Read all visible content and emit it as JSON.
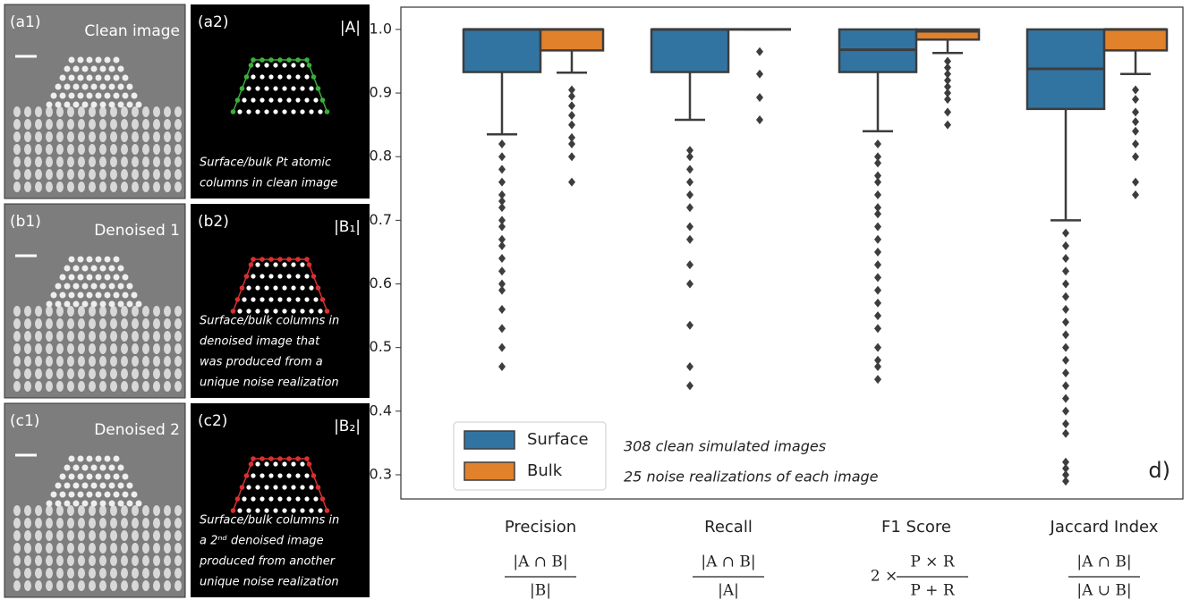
{
  "panels": [
    {
      "image_label": "(a1)",
      "image_title": "Clean image",
      "set_label": "(a2)",
      "set_name": "|A|",
      "outline_color": "#3cae3c",
      "caption": [
        "Surface/bulk Pt atomic",
        "columns in clean image"
      ]
    },
    {
      "image_label": "(b1)",
      "image_title": "Denoised 1",
      "set_label": "(b2)",
      "set_name": "|B₁|",
      "outline_color": "#d93030",
      "caption": [
        "Surface/bulk columns in",
        "denoised image that",
        "was produced from a",
        "unique noise realization"
      ]
    },
    {
      "image_label": "(c1)",
      "image_title": "Denoised 2",
      "set_label": "(c2)",
      "set_name": "|B₂|",
      "outline_color": "#d93030",
      "caption": [
        "Surface/bulk columns in",
        "a 2ⁿᵈ denoised image",
        "produced from another",
        "unique noise realization"
      ]
    }
  ],
  "chart_data": {
    "type": "box",
    "categories": [
      "Precision",
      "Recall",
      "F1 Score",
      "Jaccard Index"
    ],
    "formulas": [
      {
        "numerator": "|A ∩ B|",
        "denominator": "|B|"
      },
      {
        "numerator": "|A ∩ B|",
        "denominator": "|A|"
      },
      {
        "prefix": "2 ×",
        "numerator": "P × R",
        "denominator": "P + R"
      },
      {
        "numerator": "|A ∩ B|",
        "denominator": "|A ∪ B|"
      }
    ],
    "series": [
      {
        "name": "Surface",
        "color": "#3274a1",
        "boxes": [
          {
            "whislo": 0.835,
            "q1": 0.933,
            "med": 1.0,
            "q3": 1.0,
            "whishi": 1.0,
            "fliers": [
              0.82,
              0.8,
              0.78,
              0.76,
              0.74,
              0.73,
              0.72,
              0.7,
              0.69,
              0.67,
              0.66,
              0.64,
              0.62,
              0.6,
              0.59,
              0.56,
              0.53,
              0.5,
              0.47
            ]
          },
          {
            "whislo": 0.858,
            "q1": 0.933,
            "med": 1.0,
            "q3": 1.0,
            "whishi": 1.0,
            "fliers": [
              0.81,
              0.8,
              0.78,
              0.76,
              0.74,
              0.72,
              0.69,
              0.67,
              0.63,
              0.6,
              0.535,
              0.47,
              0.44
            ]
          },
          {
            "whislo": 0.84,
            "q1": 0.933,
            "med": 0.968,
            "q3": 1.0,
            "whishi": 1.0,
            "fliers": [
              0.82,
              0.8,
              0.79,
              0.77,
              0.76,
              0.74,
              0.72,
              0.71,
              0.69,
              0.67,
              0.65,
              0.63,
              0.61,
              0.59,
              0.57,
              0.55,
              0.53,
              0.5,
              0.48,
              0.47,
              0.45
            ]
          },
          {
            "whislo": 0.7,
            "q1": 0.875,
            "med": 0.938,
            "q3": 1.0,
            "whishi": 1.0,
            "fliers": [
              0.68,
              0.66,
              0.64,
              0.62,
              0.6,
              0.58,
              0.56,
              0.54,
              0.52,
              0.5,
              0.48,
              0.46,
              0.44,
              0.42,
              0.4,
              0.38,
              0.365,
              0.32,
              0.31,
              0.3,
              0.29
            ]
          }
        ]
      },
      {
        "name": "Bulk",
        "color": "#e1812c",
        "boxes": [
          {
            "whislo": 0.932,
            "q1": 0.967,
            "med": 1.0,
            "q3": 1.0,
            "whishi": 1.0,
            "fliers": [
              0.905,
              0.895,
              0.88,
              0.865,
              0.85,
              0.83,
              0.82,
              0.8,
              0.76
            ]
          },
          {
            "whislo": 1.0,
            "q1": 1.0,
            "med": 1.0,
            "q3": 1.0,
            "whishi": 1.0,
            "fliers": [
              0.965,
              0.93,
              0.893,
              0.858
            ]
          },
          {
            "whislo": 0.963,
            "q1": 0.984,
            "med": 0.997,
            "q3": 1.0,
            "whishi": 1.0,
            "fliers": [
              0.95,
              0.94,
              0.93,
              0.92,
              0.91,
              0.9,
              0.89,
              0.87,
              0.85
            ]
          },
          {
            "whislo": 0.93,
            "q1": 0.967,
            "med": 1.0,
            "q3": 1.0,
            "whishi": 1.0,
            "fliers": [
              0.905,
              0.89,
              0.87,
              0.855,
              0.84,
              0.82,
              0.8,
              0.76,
              0.74
            ]
          }
        ]
      }
    ],
    "ylim": [
      0.262,
      1.035
    ],
    "yticks": [
      0.3,
      0.4,
      0.5,
      0.6,
      0.7,
      0.8,
      0.9,
      {
        "value": 1.0,
        "label": "1.0"
      }
    ],
    "legend": "lower left",
    "annotations": [
      "308 clean simulated images",
      "25 noise realizations of each image"
    ],
    "panel_label": "d)"
  }
}
